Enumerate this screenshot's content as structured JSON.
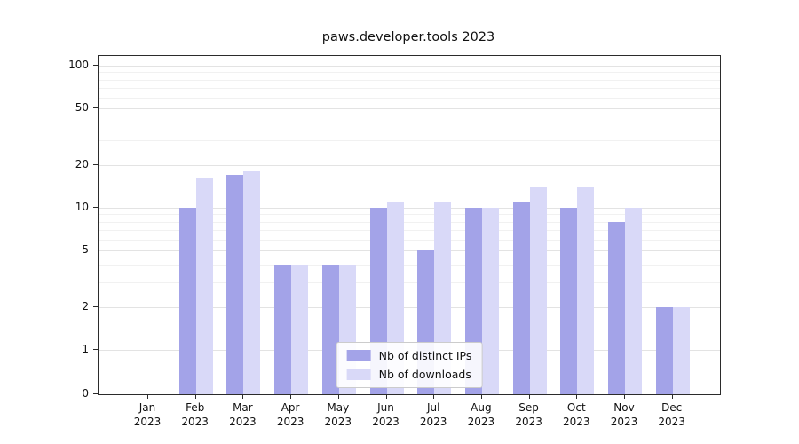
{
  "chart_data": {
    "type": "bar",
    "title": "paws.developer.tools 2023",
    "categories": [
      "Jan",
      "Feb",
      "Mar",
      "Apr",
      "May",
      "Jun",
      "Jul",
      "Aug",
      "Sep",
      "Oct",
      "Nov",
      "Dec"
    ],
    "year": "2023",
    "series": [
      {
        "name": "Nb of distinct IPs",
        "color": "#a3a3e8",
        "values": [
          0,
          10,
          17,
          4,
          4,
          10,
          5,
          10,
          11,
          10,
          8,
          2
        ]
      },
      {
        "name": "Nb of downloads",
        "color": "#d9d9f8",
        "values": [
          0,
          16,
          18,
          4,
          4,
          11,
          11,
          10,
          14,
          14,
          10,
          2
        ]
      }
    ],
    "yscale": "symlog",
    "yticks": [
      0,
      1,
      2,
      5,
      10,
      20,
      50,
      100
    ],
    "ylim": [
      0,
      130
    ],
    "grid": true,
    "legend_position": "lower center"
  }
}
